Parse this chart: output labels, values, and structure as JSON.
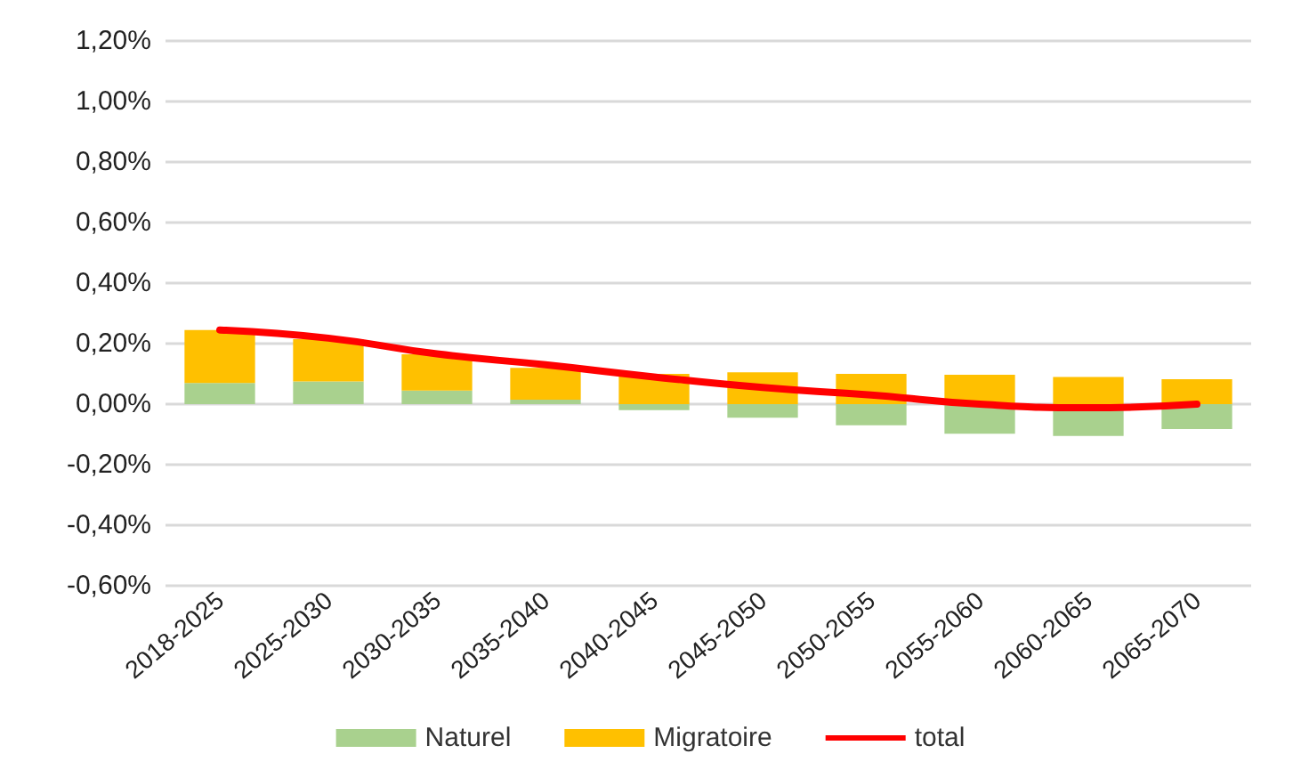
{
  "chart_data": {
    "type": "bar",
    "stacked": true,
    "categories": [
      "2018-2025",
      "2025-2030",
      "2030-2035",
      "2035-2040",
      "2040-2045",
      "2045-2050",
      "2050-2055",
      "2055-2060",
      "2060-2065",
      "2065-2070"
    ],
    "series": [
      {
        "name": "Naturel",
        "color": "#a9d18e",
        "values": [
          0.07,
          0.075,
          0.045,
          0.015,
          -0.02,
          -0.045,
          -0.07,
          -0.098,
          -0.105,
          -0.082
        ]
      },
      {
        "name": "Migratoire",
        "color": "#ffc000",
        "values": [
          0.175,
          0.14,
          0.12,
          0.105,
          0.1,
          0.105,
          0.1,
          0.097,
          0.09,
          0.082
        ]
      },
      {
        "name": "total",
        "type": "line",
        "color": "#ff0000",
        "values": [
          0.245,
          0.218,
          0.166,
          0.13,
          0.09,
          0.055,
          0.03,
          0.0,
          -0.012,
          0.0
        ]
      }
    ],
    "ylim": [
      -0.6,
      1.2
    ],
    "yticks": [
      {
        "value": -0.6,
        "label": "-0,60%"
      },
      {
        "value": -0.4,
        "label": "-0,40%"
      },
      {
        "value": -0.2,
        "label": "-0,20%"
      },
      {
        "value": 0,
        "label": "0,00%"
      },
      {
        "value": 0.2,
        "label": "0,20%"
      },
      {
        "value": 0.4,
        "label": "0,40%"
      },
      {
        "value": 0.6,
        "label": "0,60%"
      },
      {
        "value": 0.8,
        "label": "0,80%"
      },
      {
        "value": 1.0,
        "label": "1,00%"
      },
      {
        "value": 1.2,
        "label": "1,20%"
      }
    ],
    "grid": "y",
    "legend": "bottom",
    "marker": "none"
  }
}
